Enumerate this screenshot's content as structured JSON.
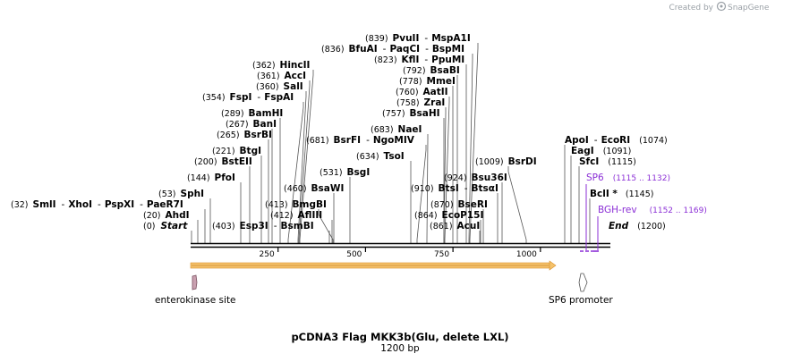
{
  "header": {
    "created_by": "Created by",
    "brand": "SnapGene"
  },
  "map": {
    "title": "pCDNA3 Flag MKK3b(Glu, delete LXL)",
    "size_label": "1200 bp",
    "length": 1200,
    "ticks": [
      {
        "bp": 250,
        "label": "250"
      },
      {
        "bp": 500,
        "label": "500"
      },
      {
        "bp": 750,
        "label": "750"
      },
      {
        "bp": 1000,
        "label": "1000"
      }
    ],
    "start": {
      "pos": "(0)",
      "label": "Start"
    },
    "end": {
      "label": "End",
      "pos": "(1200)"
    }
  },
  "enzymes": [
    {
      "pos": "(20)",
      "names": [
        "AhdI"
      ],
      "site": 20
    },
    {
      "pos": "(32)",
      "names": [
        "SmlI",
        "XhoI",
        "PspXI",
        "PaeR7I"
      ],
      "site": 32
    },
    {
      "pos": "(53)",
      "names": [
        "SphI"
      ],
      "site": 53
    },
    {
      "pos": "(144)",
      "names": [
        "PfoI"
      ],
      "site": 144
    },
    {
      "pos": "(200)",
      "names": [
        "BstEII"
      ],
      "site": 200
    },
    {
      "pos": "(221)",
      "names": [
        "BtgI"
      ],
      "site": 221
    },
    {
      "pos": "(265)",
      "names": [
        "BsrBI"
      ],
      "site": 265
    },
    {
      "pos": "(267)",
      "names": [
        "BanI"
      ],
      "site": 267
    },
    {
      "pos": "(289)",
      "names": [
        "BamHI"
      ],
      "site": 289
    },
    {
      "pos": "(354)",
      "names": [
        "FspI",
        "FspAI"
      ],
      "site": 354
    },
    {
      "pos": "(360)",
      "names": [
        "SalI"
      ],
      "site": 360
    },
    {
      "pos": "(361)",
      "names": [
        "AccI"
      ],
      "site": 361
    },
    {
      "pos": "(362)",
      "names": [
        "HincII"
      ],
      "site": 362
    },
    {
      "pos": "(403)",
      "names": [
        "Esp3I",
        "BsmBI"
      ],
      "site": 403
    },
    {
      "pos": "(412)",
      "names": [
        "AflIII"
      ],
      "site": 412
    },
    {
      "pos": "(413)",
      "names": [
        "BmgBI"
      ],
      "site": 413
    },
    {
      "pos": "(460)",
      "names": [
        "BsaWI"
      ],
      "site": 460
    },
    {
      "pos": "(531)",
      "names": [
        "BsgI"
      ],
      "site": 531
    },
    {
      "pos": "(634)",
      "names": [
        "TsoI"
      ],
      "site": 634
    },
    {
      "pos": "(681)",
      "names": [
        "BsrFI",
        "NgoMIV"
      ],
      "site": 681
    },
    {
      "pos": "(683)",
      "names": [
        "NaeI"
      ],
      "site": 683
    },
    {
      "pos": "(757)",
      "names": [
        "BsaHI"
      ],
      "site": 757
    },
    {
      "pos": "(758)",
      "names": [
        "ZraI"
      ],
      "site": 758
    },
    {
      "pos": "(760)",
      "names": [
        "AatII"
      ],
      "site": 760
    },
    {
      "pos": "(778)",
      "names": [
        "MmeI"
      ],
      "site": 778
    },
    {
      "pos": "(792)",
      "names": [
        "BsaBI"
      ],
      "site": 792
    },
    {
      "pos": "(823)",
      "names": [
        "KflI",
        "PpuMI"
      ],
      "site": 823
    },
    {
      "pos": "(836)",
      "names": [
        "BfuAI",
        "PaqCI",
        "BspMI"
      ],
      "site": 836
    },
    {
      "pos": "(839)",
      "names": [
        "PvuII",
        "MspA1I"
      ],
      "site": 839
    },
    {
      "pos": "(861)",
      "names": [
        "AcuI"
      ],
      "site": 861
    },
    {
      "pos": "(864)",
      "names": [
        "EcoP15I"
      ],
      "site": 864
    },
    {
      "pos": "(870)",
      "names": [
        "BseRI"
      ],
      "site": 870
    },
    {
      "pos": "(910)",
      "names": [
        "BtsI",
        "BtsαI"
      ],
      "site": 910
    },
    {
      "pos": "(924)",
      "names": [
        "Bsu36I"
      ],
      "site": 924
    },
    {
      "pos": "(1009)",
      "names": [
        "BsrDI"
      ],
      "site": 1009
    },
    {
      "pos": "(1074)",
      "names": [
        "ApoI",
        "EcoRI"
      ],
      "site": 1074
    },
    {
      "pos": "(1091)",
      "names": [
        "EagI"
      ],
      "site": 1091
    },
    {
      "pos": "(1115)",
      "names": [
        "SfcI"
      ],
      "site": 1115
    },
    {
      "pos": "(1145)",
      "names": [
        "BclI *"
      ],
      "site": 1145
    }
  ],
  "primers": [
    {
      "name": "SP6",
      "range": "(1115 .. 1132)"
    },
    {
      "name": "BGH-rev",
      "range": "(1152 .. 1169)"
    }
  ],
  "features": [
    {
      "name": "enterokinase site",
      "start": 8,
      "end": 23
    },
    {
      "name": "SP6 promoter",
      "start": 1112,
      "end": 1131
    }
  ],
  "colors": {
    "primer": "#8b2fd6",
    "orf_fill": "#f5c26b",
    "orf_stroke": "#d9902a",
    "ek_fill": "#c9a0b0"
  }
}
